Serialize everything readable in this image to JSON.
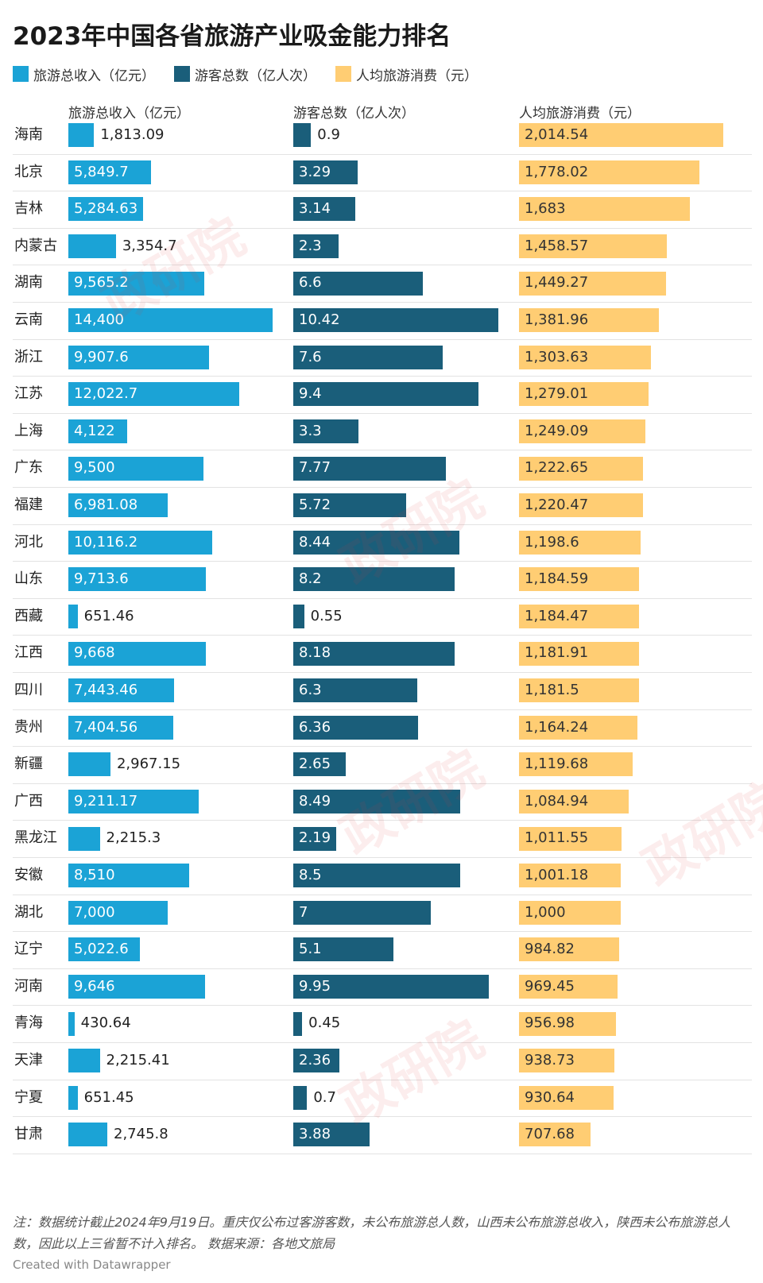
{
  "colors": {
    "revenue": "#1ba3d6",
    "visitors": "#1a5e7a",
    "per_capita": "#ffcd73"
  },
  "chart_data": {
    "type": "bar",
    "title": "2023年中国各省旅游产业吸金能力排名",
    "legend": [
      "旅游总收入（亿元）",
      "游客总数（亿人次）",
      "人均旅游消费（元）"
    ],
    "column_headers": [
      "旅游总收入（亿元）",
      "游客总数（亿人次）",
      "人均旅游消费（元）"
    ],
    "rows": [
      {
        "province": "海南",
        "revenue": 1813.09,
        "revenue_label": "1,813.09",
        "visitors": 0.9,
        "visitors_label": "0.9",
        "per_capita": 2014.54,
        "per_capita_label": "2,014.54"
      },
      {
        "province": "北京",
        "revenue": 5849.7,
        "revenue_label": "5,849.7",
        "visitors": 3.29,
        "visitors_label": "3.29",
        "per_capita": 1778.02,
        "per_capita_label": "1,778.02"
      },
      {
        "province": "吉林",
        "revenue": 5284.63,
        "revenue_label": "5,284.63",
        "visitors": 3.14,
        "visitors_label": "3.14",
        "per_capita": 1683,
        "per_capita_label": "1,683"
      },
      {
        "province": "内蒙古",
        "revenue": 3354.7,
        "revenue_label": "3,354.7",
        "visitors": 2.3,
        "visitors_label": "2.3",
        "per_capita": 1458.57,
        "per_capita_label": "1,458.57"
      },
      {
        "province": "湖南",
        "revenue": 9565.2,
        "revenue_label": "9,565.2",
        "visitors": 6.6,
        "visitors_label": "6.6",
        "per_capita": 1449.27,
        "per_capita_label": "1,449.27"
      },
      {
        "province": "云南",
        "revenue": 14400,
        "revenue_label": "14,400",
        "visitors": 10.42,
        "visitors_label": "10.42",
        "per_capita": 1381.96,
        "per_capita_label": "1,381.96"
      },
      {
        "province": "浙江",
        "revenue": 9907.6,
        "revenue_label": "9,907.6",
        "visitors": 7.6,
        "visitors_label": "7.6",
        "per_capita": 1303.63,
        "per_capita_label": "1,303.63"
      },
      {
        "province": "江苏",
        "revenue": 12022.7,
        "revenue_label": "12,022.7",
        "visitors": 9.4,
        "visitors_label": "9.4",
        "per_capita": 1279.01,
        "per_capita_label": "1,279.01"
      },
      {
        "province": "上海",
        "revenue": 4122,
        "revenue_label": "4,122",
        "visitors": 3.3,
        "visitors_label": "3.3",
        "per_capita": 1249.09,
        "per_capita_label": "1,249.09"
      },
      {
        "province": "广东",
        "revenue": 9500,
        "revenue_label": "9,500",
        "visitors": 7.77,
        "visitors_label": "7.77",
        "per_capita": 1222.65,
        "per_capita_label": "1,222.65"
      },
      {
        "province": "福建",
        "revenue": 6981.08,
        "revenue_label": "6,981.08",
        "visitors": 5.72,
        "visitors_label": "5.72",
        "per_capita": 1220.47,
        "per_capita_label": "1,220.47"
      },
      {
        "province": "河北",
        "revenue": 10116.2,
        "revenue_label": "10,116.2",
        "visitors": 8.44,
        "visitors_label": "8.44",
        "per_capita": 1198.6,
        "per_capita_label": "1,198.6"
      },
      {
        "province": "山东",
        "revenue": 9713.6,
        "revenue_label": "9,713.6",
        "visitors": 8.2,
        "visitors_label": "8.2",
        "per_capita": 1184.59,
        "per_capita_label": "1,184.59"
      },
      {
        "province": "西藏",
        "revenue": 651.46,
        "revenue_label": "651.46",
        "visitors": 0.55,
        "visitors_label": "0.55",
        "per_capita": 1184.47,
        "per_capita_label": "1,184.47"
      },
      {
        "province": "江西",
        "revenue": 9668,
        "revenue_label": "9,668",
        "visitors": 8.18,
        "visitors_label": "8.18",
        "per_capita": 1181.91,
        "per_capita_label": "1,181.91"
      },
      {
        "province": "四川",
        "revenue": 7443.46,
        "revenue_label": "7,443.46",
        "visitors": 6.3,
        "visitors_label": "6.3",
        "per_capita": 1181.5,
        "per_capita_label": "1,181.5"
      },
      {
        "province": "贵州",
        "revenue": 7404.56,
        "revenue_label": "7,404.56",
        "visitors": 6.36,
        "visitors_label": "6.36",
        "per_capita": 1164.24,
        "per_capita_label": "1,164.24"
      },
      {
        "province": "新疆",
        "revenue": 2967.15,
        "revenue_label": "2,967.15",
        "visitors": 2.65,
        "visitors_label": "2.65",
        "per_capita": 1119.68,
        "per_capita_label": "1,119.68"
      },
      {
        "province": "广西",
        "revenue": 9211.17,
        "revenue_label": "9,211.17",
        "visitors": 8.49,
        "visitors_label": "8.49",
        "per_capita": 1084.94,
        "per_capita_label": "1,084.94"
      },
      {
        "province": "黑龙江",
        "revenue": 2215.3,
        "revenue_label": "2,215.3",
        "visitors": 2.19,
        "visitors_label": "2.19",
        "per_capita": 1011.55,
        "per_capita_label": "1,011.55"
      },
      {
        "province": "安徽",
        "revenue": 8510,
        "revenue_label": "8,510",
        "visitors": 8.5,
        "visitors_label": "8.5",
        "per_capita": 1001.18,
        "per_capita_label": "1,001.18"
      },
      {
        "province": "湖北",
        "revenue": 7000,
        "revenue_label": "7,000",
        "visitors": 7,
        "visitors_label": "7",
        "per_capita": 1000,
        "per_capita_label": "1,000"
      },
      {
        "province": "辽宁",
        "revenue": 5022.6,
        "revenue_label": "5,022.6",
        "visitors": 5.1,
        "visitors_label": "5.1",
        "per_capita": 984.82,
        "per_capita_label": "984.82"
      },
      {
        "province": "河南",
        "revenue": 9646,
        "revenue_label": "9,646",
        "visitors": 9.95,
        "visitors_label": "9.95",
        "per_capita": 969.45,
        "per_capita_label": "969.45"
      },
      {
        "province": "青海",
        "revenue": 430.64,
        "revenue_label": "430.64",
        "visitors": 0.45,
        "visitors_label": "0.45",
        "per_capita": 956.98,
        "per_capita_label": "956.98"
      },
      {
        "province": "天津",
        "revenue": 2215.41,
        "revenue_label": "2,215.41",
        "visitors": 2.36,
        "visitors_label": "2.36",
        "per_capita": 938.73,
        "per_capita_label": "938.73"
      },
      {
        "province": "宁夏",
        "revenue": 651.45,
        "revenue_label": "651.45",
        "visitors": 0.7,
        "visitors_label": "0.7",
        "per_capita": 930.64,
        "per_capita_label": "930.64"
      },
      {
        "province": "甘肃",
        "revenue": 2745.8,
        "revenue_label": "2,745.8",
        "visitors": 3.88,
        "visitors_label": "3.88",
        "per_capita": 707.68,
        "per_capita_label": "707.68"
      }
    ]
  },
  "note": "注：数据统计截止2024年9月19日。重庆仅公布过客游客数，未公布旅游总人数，山西未公布旅游总收入，陕西未公布旅游总人数，因此以上三省暂不计入排名。 数据来源：各地文旅局",
  "credit": "Created with Datawrapper",
  "watermark": "政研院"
}
